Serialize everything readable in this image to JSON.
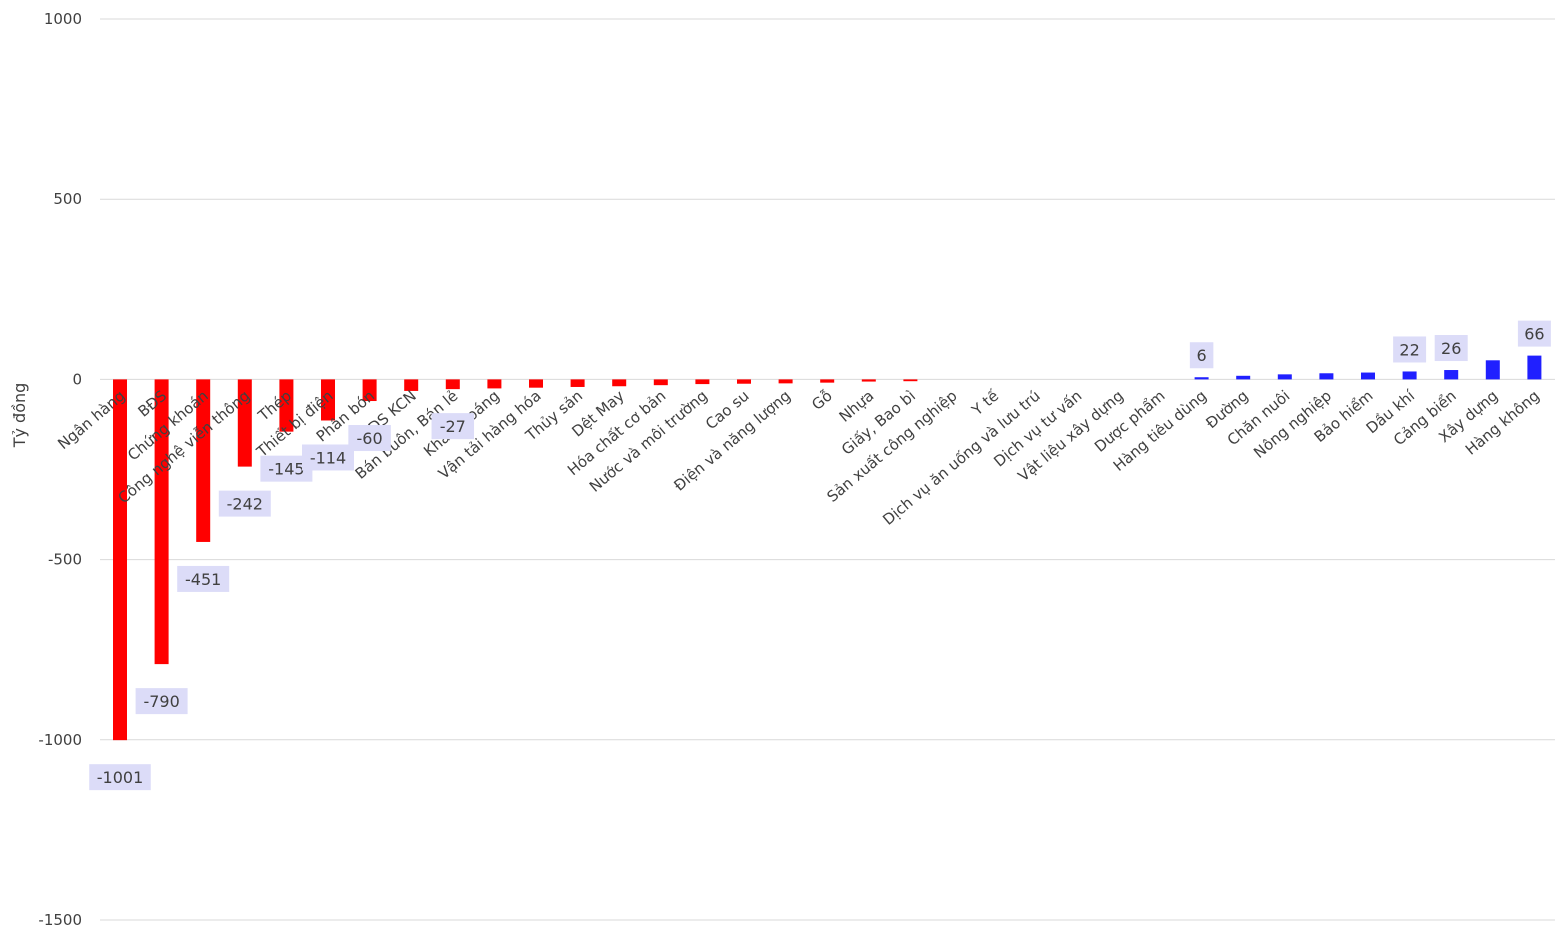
{
  "chart_data": {
    "type": "bar",
    "ylabel": "Tỷ đồng",
    "ylim": [
      -1500,
      1000
    ],
    "yticks": [
      1000,
      500,
      0,
      -500,
      -1000,
      -1500
    ],
    "grid": true,
    "categories": [
      "Ngân hàng",
      "BĐS",
      "Chứng khoán",
      "Công nghệ viễn thông",
      "Thép",
      "Thiết bị điện",
      "Phân bón",
      "BĐS KCN",
      "Bán buôn, Bán lẻ",
      "Khai khoáng",
      "Vận tải hàng hóa",
      "Thủy sản",
      "Dệt May",
      "Hóa chất cơ bản",
      "Nước và môi trường",
      "Cao su",
      "Điện và năng lượng",
      "Gỗ",
      "Nhựa",
      "Giấy, Bao bì",
      "Sản xuất công nghiệp",
      "Y tế",
      "Dịch vụ ăn uống và lưu trú",
      "Dịch vụ tư vấn",
      "Vật liệu xây dựng",
      "Dược phẩm",
      "Hàng tiêu dùng",
      "Đường",
      "Chăn nuôi",
      "Nông nghiệp",
      "Bảo hiểm",
      "Dầu khí",
      "Cảng biển",
      "Xây dựng",
      "Hàng không"
    ],
    "values": [
      -1001,
      -790,
      -451,
      -242,
      -145,
      -114,
      -60,
      -32,
      -27,
      -25,
      -23,
      -21,
      -19,
      -16,
      -13,
      -12,
      -11,
      -9,
      -6,
      -5,
      0,
      0,
      0,
      0,
      0,
      0,
      6,
      10,
      14,
      17,
      19,
      22,
      26,
      53,
      66
    ],
    "data_labels": [
      {
        "index": 0,
        "text": "-1001"
      },
      {
        "index": 1,
        "text": "-790"
      },
      {
        "index": 2,
        "text": "-451"
      },
      {
        "index": 3,
        "text": "-242"
      },
      {
        "index": 4,
        "text": "-145"
      },
      {
        "index": 5,
        "text": "-114"
      },
      {
        "index": 6,
        "text": "-60"
      },
      {
        "index": 8,
        "text": "-27"
      },
      {
        "index": 26,
        "text": "6"
      },
      {
        "index": 31,
        "text": "22"
      },
      {
        "index": 32,
        "text": "26"
      },
      {
        "index": 34,
        "text": "66"
      }
    ],
    "colors": {
      "negative": "#ff0000",
      "positive": "#2020ff"
    }
  }
}
